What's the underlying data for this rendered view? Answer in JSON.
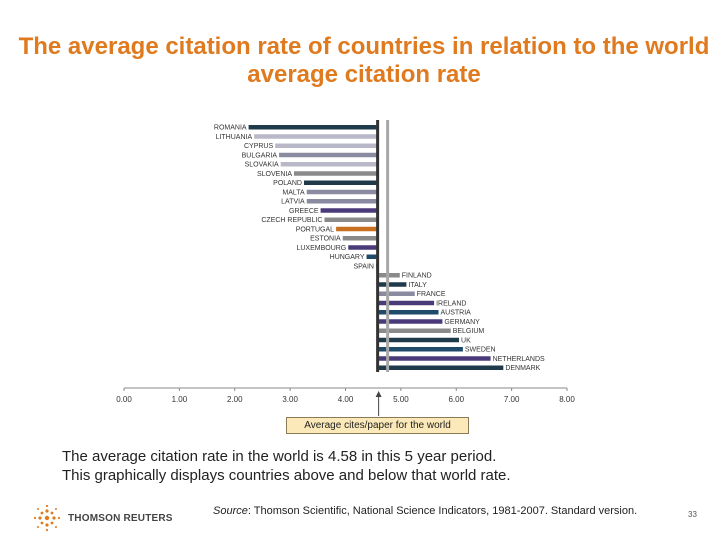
{
  "slide": {
    "title": "The average citation rate of countries in relation to the world average citation rate",
    "description_lines": [
      "The average citation rate in the world is 4.58 in this 5 year period.",
      "This graphically displays countries  above and below that world rate."
    ],
    "source_label": "Source",
    "source_text": ": Thomson Scientific, National Science Indicators, 1981-2007.  Standard version.",
    "page_number": "33",
    "logo_text": "THOMSON REUTERS"
  },
  "chart_data": {
    "type": "bar",
    "orientation": "horizontal",
    "baseline": 4.58,
    "baseline_label": "Average cites/paper for the world",
    "xlim": [
      0,
      8
    ],
    "x_ticks": [
      "0.00",
      "1.00",
      "2.00",
      "3.00",
      "4.00",
      "5.00",
      "6.00",
      "7.00",
      "8.00"
    ],
    "grid": false,
    "categories": [
      "ROMANIA",
      "LITHUANIA",
      "CYPRUS",
      "BULGARIA",
      "SLOVAKIA",
      "SLOVENIA",
      "POLAND",
      "MALTA",
      "LATVIA",
      "GREECE",
      "CZECH REPUBLIC",
      "PORTUGAL",
      "ESTONIA",
      "LUXEMBOURG",
      "HUNGARY",
      "SPAIN",
      "FINLAND",
      "ITALY",
      "FRANCE",
      "IRELAND",
      "AUSTRIA",
      "GERMANY",
      "BELGIUM",
      "UK",
      "SWEDEN",
      "NETHERLANDS",
      "DENMARK"
    ],
    "values": [
      2.25,
      2.35,
      2.73,
      2.8,
      2.83,
      3.07,
      3.25,
      3.3,
      3.3,
      3.55,
      3.62,
      3.83,
      3.95,
      4.05,
      4.38,
      4.55,
      4.98,
      5.1,
      5.25,
      5.6,
      5.68,
      5.75,
      5.9,
      6.05,
      6.12,
      6.62,
      6.85
    ],
    "colors": [
      "#1f3a4a",
      "#b8b8c8",
      "#b8b8c8",
      "#8a8aa0",
      "#b8b8c8",
      "#8a8a8a",
      "#1f3a4a",
      "#8a8aa0",
      "#8a8aa0",
      "#4a3a7a",
      "#8a8a8a",
      "#c8701f",
      "#8a8a8a",
      "#4a3a7a",
      "#1f4a6a",
      "#8a8a8a",
      "#8a8a8a",
      "#1f3a4a",
      "#8a8aa0",
      "#4a3a7a",
      "#1f4a6a",
      "#4a3a7a",
      "#8a8a8a",
      "#1f3a4a",
      "#1f4a6a",
      "#4a3a7a",
      "#1f3a4a"
    ]
  }
}
